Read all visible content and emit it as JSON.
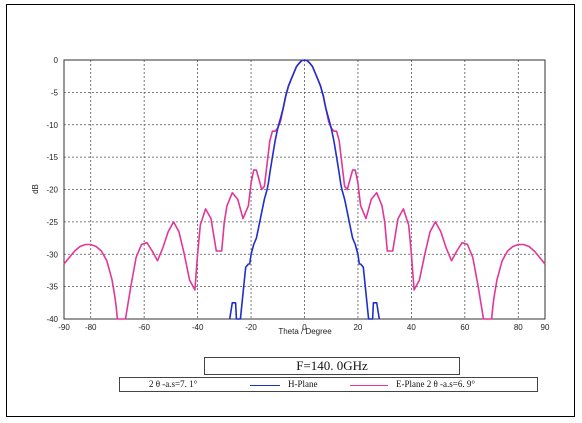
{
  "chart_data": {
    "type": "line",
    "xlabel": "Theta / Degree",
    "ylabel": "dB",
    "xlim": [
      -90,
      90
    ],
    "ylim": [
      -40,
      0
    ],
    "x_ticks": [
      -90,
      -80,
      -60,
      -40,
      -20,
      0,
      20,
      40,
      60,
      80,
      90
    ],
    "y_ticks": [
      0,
      -5,
      -10,
      -15,
      -20,
      -25,
      -30,
      -35,
      -40
    ],
    "grid": true,
    "colors": {
      "h_plane": "#1f2fcc",
      "e_plane": "#e0379a"
    },
    "series": [
      {
        "name": "H-Plane",
        "x": [
          -28,
          -27,
          -25.8,
          -25.5,
          -25,
          -24,
          -22,
          -21,
          -20.5,
          -20,
          -19,
          -18,
          -17,
          -16,
          -15,
          -14,
          -13.5,
          -13,
          -12,
          -11,
          -10,
          -9,
          -8,
          -7,
          -6,
          -5,
          -4,
          -3,
          -2,
          -1,
          0,
          1,
          2,
          3,
          4,
          5,
          6,
          7,
          8,
          9,
          10,
          11,
          12,
          13,
          13.5,
          14,
          15,
          16,
          17,
          18,
          19,
          20,
          20.5,
          21,
          22,
          24,
          25,
          25.5,
          25.8,
          27,
          28
        ],
        "values": [
          -40,
          -37.5,
          -37.5,
          -40,
          -40,
          -40,
          -32,
          -31.5,
          -31.5,
          -30,
          -28.5,
          -27.5,
          -25.5,
          -23.5,
          -21.5,
          -20,
          -19,
          -17.5,
          -15,
          -12.5,
          -10.5,
          -9,
          -7.5,
          -5.5,
          -4,
          -3,
          -2,
          -1,
          -0.5,
          -0.1,
          0,
          -0.1,
          -0.5,
          -1,
          -2,
          -3,
          -4,
          -5.5,
          -7.5,
          -9,
          -10.5,
          -12.5,
          -15,
          -17.5,
          -19,
          -20,
          -21.5,
          -23.5,
          -25.5,
          -27.5,
          -28.5,
          -30,
          -31.5,
          -31.5,
          -32,
          -40,
          -40,
          -40,
          -37.5,
          -37.5,
          -40
        ]
      },
      {
        "name": "E-Plane",
        "x": [
          -90,
          -88,
          -86,
          -84,
          -82,
          -80,
          -78,
          -76,
          -74,
          -72,
          -71,
          -70.5,
          -70,
          -67,
          -65,
          -63,
          -61,
          -59,
          -57,
          -55,
          -53,
          -51,
          -49,
          -47,
          -45,
          -43,
          -41,
          -40,
          -39,
          -37,
          -35,
          -33,
          -31,
          -30,
          -29,
          -27,
          -25,
          -23,
          -21,
          -20,
          -19,
          -18,
          -17,
          -16,
          -15,
          -14,
          -13,
          -12,
          -11,
          -10,
          -9,
          -8,
          -7,
          -6,
          -5,
          -4,
          -3,
          -2,
          -1,
          0,
          1,
          2,
          3,
          4,
          5,
          6,
          7,
          8,
          9,
          10,
          11,
          12,
          13,
          14,
          15,
          16,
          17,
          18,
          19,
          20,
          21,
          23,
          25,
          27,
          29,
          30,
          31,
          33,
          35,
          37,
          39,
          40,
          41,
          43,
          45,
          47,
          49,
          51,
          53,
          55,
          57,
          59,
          61,
          63,
          65,
          67,
          70,
          70.5,
          71,
          72,
          74,
          76,
          78,
          80,
          82,
          84,
          86,
          88,
          90
        ],
        "values": [
          -31.5,
          -30.5,
          -29.5,
          -28.8,
          -28.5,
          -28.5,
          -28.8,
          -29.5,
          -31,
          -34,
          -36.5,
          -38,
          -40,
          -40,
          -35,
          -30.5,
          -28.5,
          -28.2,
          -29.5,
          -31,
          -29,
          -26.5,
          -25,
          -26.5,
          -30,
          -34,
          -35.5,
          -30,
          -25.5,
          -23,
          -24.5,
          -29.5,
          -29.5,
          -25,
          -22.5,
          -20.5,
          -21.5,
          -24.5,
          -22.5,
          -19,
          -17,
          -17,
          -18.5,
          -20,
          -19.5,
          -16,
          -12.5,
          -11,
          -11,
          -10.5,
          -9.5,
          -7.5,
          -5.5,
          -4,
          -3,
          -2,
          -1,
          -0.5,
          -0.1,
          0,
          -0.1,
          -0.5,
          -1,
          -2,
          -3,
          -4,
          -5.5,
          -7.5,
          -9.5,
          -10.5,
          -11,
          -11,
          -12.5,
          -16,
          -19.5,
          -20,
          -18.5,
          -17,
          -17,
          -19,
          -22.5,
          -24.5,
          -21.5,
          -20.5,
          -22.5,
          -25,
          -29.5,
          -29.5,
          -24.5,
          -23,
          -25.5,
          -30,
          -35.5,
          -34,
          -30,
          -26.5,
          -25,
          -26.5,
          -29,
          -31,
          -29.5,
          -28.2,
          -28.5,
          -30.5,
          -35,
          -40,
          -40,
          -38,
          -36.5,
          -34,
          -31,
          -29.5,
          -28.8,
          -28.5,
          -28.5,
          -28.8,
          -29.5,
          -30.5,
          -31.5
        ]
      }
    ]
  },
  "annotation": {
    "frequency": "F=140. 0GHz"
  },
  "legend": {
    "beamwidth_h": "2 θ -a.s=7. 1°",
    "h_plane": "H-Plane",
    "e_plane_beamwidth": "E-Plane 2 θ -a.s=6. 9°"
  }
}
